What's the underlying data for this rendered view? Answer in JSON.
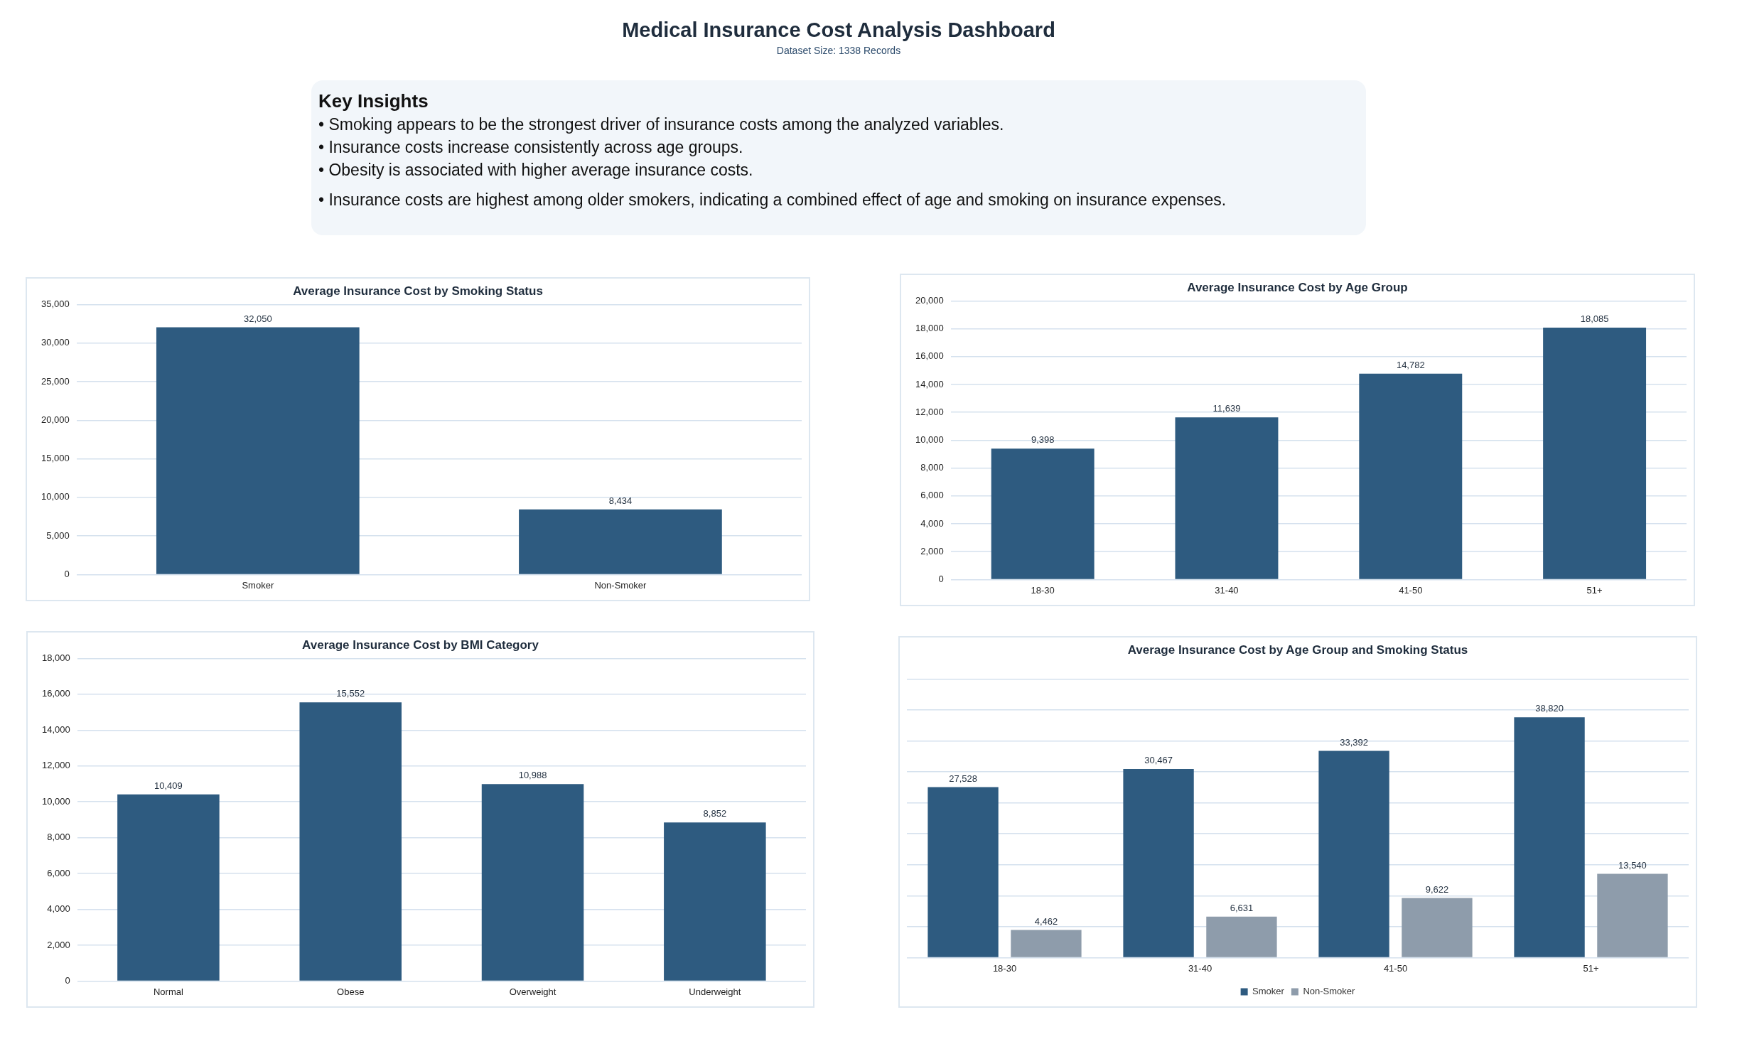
{
  "chart_data": [
    {
      "type": "other",
      "title": "Medical Insurance Cost Analysis Dashboard",
      "subtitle": "Dataset Size: 1338 Records",
      "annotations": [
        "Key Insights",
        "• Smoking appears to be the strongest driver of insurance costs among the analyzed variables.",
        "• Insurance costs increase consistently across age groups.",
        "• Obesity is associated with higher average insurance costs.",
        "• Insurance costs are highest among older smokers, indicating a combined effect of age and smoking on insurance expenses."
      ]
    },
    {
      "type": "bar",
      "title": "Average Insurance Cost by Smoking Status",
      "categories": [
        "Smoker",
        "Non-Smoker"
      ],
      "series": [
        {
          "color": "#2e5b80",
          "values": [
            32050,
            8434
          ],
          "value_labels": [
            "32,050",
            "8,434"
          ]
        }
      ],
      "ylim": [
        0,
        35000
      ],
      "yticks": [
        {
          "value": 0,
          "label": "0"
        },
        {
          "value": 5000,
          "label": "5,000"
        },
        {
          "value": 10000,
          "label": "10,000"
        },
        {
          "value": 15000,
          "label": "15,000"
        },
        {
          "value": 20000,
          "label": "20,000"
        },
        {
          "value": 25000,
          "label": "25,000"
        },
        {
          "value": 30000,
          "label": "30,000"
        },
        {
          "value": 35000,
          "label": "35,000"
        }
      ],
      "grid": "y"
    },
    {
      "type": "bar",
      "title": "Average Insurance Cost by Age Group",
      "categories": [
        "18-30",
        "31-40",
        "41-50",
        "51+"
      ],
      "series": [
        {
          "color": "#2e5b80",
          "values": [
            9398,
            11639,
            14782,
            18085
          ],
          "value_labels": [
            "9,398",
            "11,639",
            "14,782",
            "18,085"
          ]
        }
      ],
      "ylim": [
        0,
        20000
      ],
      "yticks": [
        {
          "value": 0,
          "label": "0"
        },
        {
          "value": 2000,
          "label": "2,000"
        },
        {
          "value": 4000,
          "label": "4,000"
        },
        {
          "value": 6000,
          "label": "6,000"
        },
        {
          "value": 8000,
          "label": "8,000"
        },
        {
          "value": 10000,
          "label": "10,000"
        },
        {
          "value": 12000,
          "label": "12,000"
        },
        {
          "value": 14000,
          "label": "14,000"
        },
        {
          "value": 16000,
          "label": "16,000"
        },
        {
          "value": 18000,
          "label": "18,000"
        },
        {
          "value": 20000,
          "label": "20,000"
        }
      ],
      "grid": "y"
    },
    {
      "type": "bar",
      "title": "Average Insurance Cost by BMI Category",
      "categories": [
        "Normal",
        "Obese",
        "Overweight",
        "Underweight"
      ],
      "series": [
        {
          "color": "#2e5b80",
          "values": [
            10409,
            15552,
            10988,
            8852
          ],
          "value_labels": [
            "10,409",
            "15,552",
            "10,988",
            "8,852"
          ]
        }
      ],
      "ylim": [
        0,
        18000
      ],
      "yticks": [
        {
          "value": 0,
          "label": "0"
        },
        {
          "value": 2000,
          "label": "2,000"
        },
        {
          "value": 4000,
          "label": "4,000"
        },
        {
          "value": 6000,
          "label": "6,000"
        },
        {
          "value": 8000,
          "label": "8,000"
        },
        {
          "value": 10000,
          "label": "10,000"
        },
        {
          "value": 12000,
          "label": "12,000"
        },
        {
          "value": 14000,
          "label": "14,000"
        },
        {
          "value": 16000,
          "label": "16,000"
        },
        {
          "value": 18000,
          "label": "18,000"
        }
      ],
      "grid": "y"
    },
    {
      "type": "bar",
      "title": "Average Insurance Cost by Age Group and Smoking Status",
      "categories": [
        "18-30",
        "31-40",
        "41-50",
        "51+"
      ],
      "series": [
        {
          "name": "Smoker",
          "color": "#2e5b80",
          "values": [
            27528,
            30467,
            33392,
            38820
          ],
          "value_labels": [
            "27,528",
            "30,467",
            "33,392",
            "38,820"
          ]
        },
        {
          "name": "Non-Smoker",
          "color": "#8e9cab",
          "values": [
            4462,
            6631,
            9622,
            13540
          ],
          "value_labels": [
            "4,462",
            "6,631",
            "9,622",
            "13,540"
          ]
        }
      ],
      "ylim": [
        0,
        45000
      ],
      "yticks": [
        {
          "value": 0,
          "label": null
        },
        {
          "value": 5000,
          "label": null
        },
        {
          "value": 10000,
          "label": null
        },
        {
          "value": 15000,
          "label": null
        },
        {
          "value": 20000,
          "label": null
        },
        {
          "value": 25000,
          "label": null
        },
        {
          "value": 30000,
          "label": null
        },
        {
          "value": 35000,
          "label": null
        },
        {
          "value": 40000,
          "label": null
        },
        {
          "value": 45000,
          "label": null
        }
      ],
      "grid": "y",
      "tick_labels": "x",
      "legend": "bottom"
    }
  ]
}
